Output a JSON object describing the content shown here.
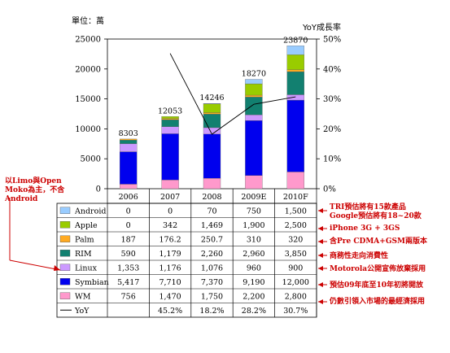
{
  "labels": {
    "left_unit": "單位：萬",
    "right_unit": "YoY成長率",
    "side_note": "以Limo與Open Moko為主，不含Android"
  },
  "annotations": [
    "TRI預估將有15款產品",
    "Google預估將有18~20款",
    "iPhone 3G + 3GS",
    "含Pre CDMA+GSM兩版本",
    "商務性走向消費性",
    "Motorola公開宣佈放棄採用",
    "預估09年底至10年初將開放",
    "仍數引領入市場的最經濟採用"
  ],
  "chart_data": {
    "type": "bar",
    "stacked": true,
    "categories": [
      "2006",
      "2007",
      "2008",
      "2009E",
      "2010F"
    ],
    "totals": [
      "8303",
      "12053",
      "14246",
      "18270",
      "23870"
    ],
    "ylim": [
      0,
      25000
    ],
    "yticks": [
      "0",
      "5000",
      "10000",
      "15000",
      "20000",
      "25000"
    ],
    "y2lim": [
      0,
      50
    ],
    "y2ticks": [
      "0%",
      "10%",
      "20%",
      "30%",
      "40%",
      "50%"
    ],
    "series": [
      {
        "name": "WM",
        "color": "#ff99cc",
        "values": [
          756,
          1470,
          1750,
          2200,
          2800
        ],
        "labels": [
          "756",
          "1,470",
          "1,750",
          "2,200",
          "2,800"
        ]
      },
      {
        "name": "Symbian",
        "color": "#0000ee",
        "values": [
          5417,
          7710,
          7370,
          9190,
          12000
        ],
        "labels": [
          "5,417",
          "7,710",
          "7,370",
          "9,190",
          "12,000"
        ]
      },
      {
        "name": "Linux",
        "color": "#cc99ff",
        "values": [
          1353,
          1176,
          1076,
          960,
          900
        ],
        "labels": [
          "1,353",
          "1,176",
          "1,076",
          "960",
          "900"
        ]
      },
      {
        "name": "RIM",
        "color": "#128070",
        "values": [
          590,
          1179,
          2260,
          2960,
          3850
        ],
        "labels": [
          "590",
          "1,179",
          "2,260",
          "2,960",
          "3,850"
        ]
      },
      {
        "name": "Palm",
        "color": "#ffaa22",
        "values": [
          187,
          176.2,
          250.7,
          310,
          320
        ],
        "labels": [
          "187",
          "176.2",
          "250.7",
          "310",
          "320"
        ]
      },
      {
        "name": "Apple",
        "color": "#99cc00",
        "values": [
          0,
          342,
          1469,
          1900,
          2500
        ],
        "labels": [
          "0",
          "342",
          "1,469",
          "1,900",
          "2,500"
        ]
      },
      {
        "name": "Android",
        "color": "#99ccff",
        "values": [
          0,
          0,
          70,
          750,
          1500
        ],
        "labels": [
          "0",
          "0",
          "70",
          "750",
          "1,500"
        ]
      }
    ],
    "yoy": {
      "name": "YoY",
      "values": [
        null,
        45.2,
        18.2,
        28.2,
        30.7
      ],
      "labels": [
        "",
        "45.2%",
        "18.2%",
        "28.2%",
        "30.7%"
      ]
    }
  }
}
